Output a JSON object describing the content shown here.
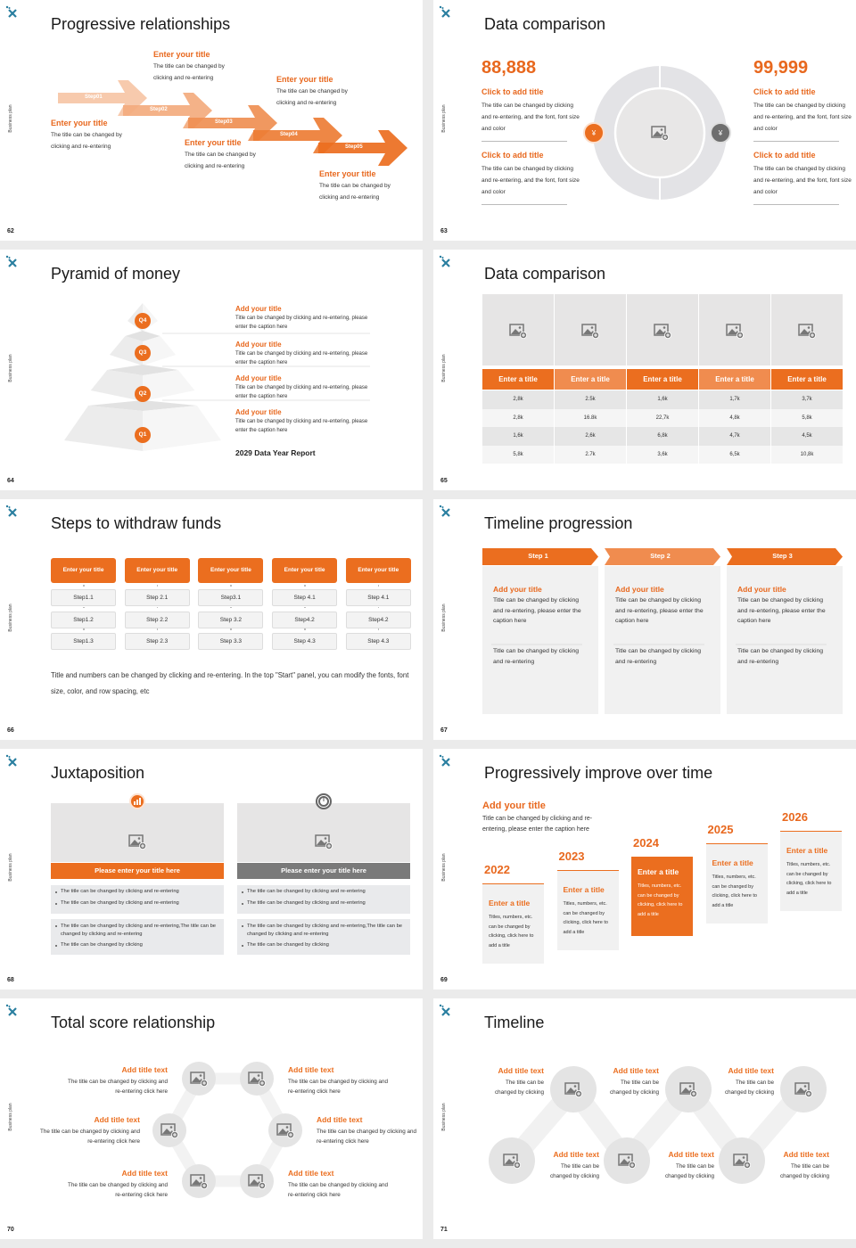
{
  "common": {
    "side_label": "Business plan"
  },
  "colors": {
    "accent": "#eb6e1f",
    "accent_light": "#f08c4f",
    "gray": "#6e6e6e",
    "logo": "#2a7fa0",
    "placeholder": "#e6e5e5"
  },
  "slides": [
    {
      "number": "62",
      "title": "Progressive relationships",
      "arrows": [
        "Step01",
        "Step02",
        "Step03",
        "Step04",
        "Step05"
      ],
      "blocks": [
        {
          "title": "Enter your title",
          "text": "The title can be changed by clicking and re-entering"
        },
        {
          "title": "Enter your title",
          "text": "The title can be changed by clicking and re-entering"
        },
        {
          "title": "Enter your title",
          "text": "The title can be changed by clicking and re-entering"
        },
        {
          "title": "Enter your title",
          "text": "The title can be changed by clicking and re-entering"
        },
        {
          "title": "Enter your title",
          "text": "The title can be changed by clicking and re-entering"
        }
      ]
    },
    {
      "number": "63",
      "title": "Data comparison",
      "left": {
        "value": "88,888",
        "items": [
          {
            "title": "Click to add title",
            "text": "The title can be changed by clicking and re-entering, and the font, font size and color"
          },
          {
            "title": "Click to add title",
            "text": "The title can be changed by clicking and re-entering, and the font, font size and color"
          }
        ]
      },
      "right": {
        "value": "99,999",
        "items": [
          {
            "title": "Click to add title",
            "text": "The title can be changed by clicking and re-entering, and the font, font size and color"
          },
          {
            "title": "Click to add title",
            "text": "The title can be changed by clicking and re-entering, and the font, font size and color"
          }
        ]
      },
      "icons": [
        "money-hand-icon",
        "money-bag-icon"
      ]
    },
    {
      "number": "64",
      "title": "Pyramid of money",
      "levels": [
        "Q4",
        "Q3",
        "Q2",
        "Q1"
      ],
      "items": [
        {
          "title": "Add your title",
          "text": "Title can be changed by clicking and re-entering, please enter the caption here"
        },
        {
          "title": "Add your title",
          "text": "Title can be changed by clicking and re-entering, please enter the caption here"
        },
        {
          "title": "Add your title",
          "text": "Title can be changed by clicking and re-entering, please enter the caption here"
        },
        {
          "title": "Add your title",
          "text": "Title can be changed by clicking and re-entering, please enter the caption here"
        }
      ],
      "footer": "2029 Data Year Report"
    },
    {
      "number": "65",
      "title": "Data comparison",
      "table": {
        "headers": [
          "Enter a title",
          "Enter a title",
          "Enter a title",
          "Enter a title",
          "Enter a title"
        ],
        "rows": [
          [
            "2,8k",
            "2.5k",
            "1,6k",
            "1,7k",
            "3,7k"
          ],
          [
            "2,8k",
            "16.8k",
            "22,7k",
            "4,8k",
            "5,8k"
          ],
          [
            "1,6k",
            "2,6k",
            "6,8k",
            "4,7k",
            "4,5k"
          ],
          [
            "5,8k",
            "2.7k",
            "3,6k",
            "6,5k",
            "10,8k"
          ]
        ]
      }
    },
    {
      "number": "66",
      "title": "Steps to withdraw funds",
      "columns": [
        {
          "title": "Enter your title",
          "steps": [
            "Step1.1",
            "Step1.2",
            "Step1.3"
          ]
        },
        {
          "title": "Enter your title",
          "steps": [
            "Step 2.1",
            "Step 2.2",
            "Step 2.3"
          ]
        },
        {
          "title": "Enter your title",
          "steps": [
            "Step3.1",
            "Step 3.2",
            "Step 3.3"
          ]
        },
        {
          "title": "Enter your title",
          "steps": [
            "Step 4.1",
            "Step4.2",
            "Step 4.3"
          ]
        },
        {
          "title": "Enter your title",
          "steps": [
            "Step 4.1",
            "Step4.2",
            "Step 4.3"
          ]
        }
      ],
      "caption": "Title and numbers can be changed by clicking and re-entering. In the top \"Start\" panel, you can modify the fonts, font size, color, and row spacing, etc"
    },
    {
      "number": "67",
      "title": "Timeline progression",
      "steps": [
        {
          "label": "Step 1",
          "title": "Add your title",
          "text": "Title can be changed by clicking and re-entering, please enter the caption here",
          "note": "Title can be changed by clicking and re-entering"
        },
        {
          "label": "Step 2",
          "title": "Add your title",
          "text": "Title can be changed by clicking and re-entering, please enter the caption here",
          "note": "Title can be changed by clicking and re-entering"
        },
        {
          "label": "Step 3",
          "title": "Add your title",
          "text": "Title can be changed by clicking and re-entering, please enter the caption here",
          "note": "Title can be changed by clicking and re-entering"
        }
      ]
    },
    {
      "number": "68",
      "title": "Juxtaposition",
      "panels": [
        {
          "title": "Please enter your title here",
          "icon": "bar-chart-icon",
          "bullets1": [
            "The title can be changed by clicking and re-entering",
            "The title can be changed by clicking and re-entering"
          ],
          "bullets2": [
            "The title can be changed by clicking and re-entering,The title can be changed by clicking and re-entering",
            "The title can be changed by clicking"
          ]
        },
        {
          "title": "Please enter your title here",
          "icon": "clock-icon",
          "bullets1": [
            "The title can be changed by clicking and re-entering",
            "The title can be changed by clicking and re-entering"
          ],
          "bullets2": [
            "The title can be changed by clicking and re-entering,The title can be changed by clicking and re-entering",
            "The title can be changed by clicking"
          ]
        }
      ]
    },
    {
      "number": "69",
      "title": "Progressively improve over time",
      "intro": {
        "title": "Add your title",
        "text": "Title can be changed by clicking and re-entering, please enter the caption here"
      },
      "years": [
        {
          "year": "2022",
          "title": "Enter a title",
          "text": "Titles, numbers, etc. can be changed by clicking, click here to add a title"
        },
        {
          "year": "2023",
          "title": "Enter a title",
          "text": "Titles, numbers, etc. can be changed by clicking, click here to add a title"
        },
        {
          "year": "2024",
          "title": "Enter a title",
          "text": "Titles, numbers, etc. can be changed by clicking, click here to add a title"
        },
        {
          "year": "2025",
          "title": "Enter a title",
          "text": "Titles, numbers, etc. can be changed by clicking, click here to add a title"
        },
        {
          "year": "2026",
          "title": "Enter a title",
          "text": "Titles, numbers, etc. can be changed by clicking, click here to add a title"
        }
      ]
    },
    {
      "number": "70",
      "title": "Total score relationship",
      "items": [
        {
          "title": "Add title text",
          "text": "The title can be changed by clicking and re-entering click here"
        },
        {
          "title": "Add title text",
          "text": "The title can be changed by clicking and re-entering click here"
        },
        {
          "title": "Add title text",
          "text": "The title can be changed by clicking and re-entering click here"
        },
        {
          "title": "Add title text",
          "text": "The title can be changed by clicking and re-entering click here"
        },
        {
          "title": "Add title text",
          "text": "The title can be changed by clicking and re-entering click here"
        },
        {
          "title": "Add title text",
          "text": "The title can be changed by clicking and re-entering click here"
        }
      ]
    },
    {
      "number": "71",
      "title": "Timeline",
      "items": [
        {
          "title": "Add title text",
          "text": "The title can be changed by clicking"
        },
        {
          "title": "Add title text",
          "text": "The title can be changed by clicking"
        },
        {
          "title": "Add title text",
          "text": "The title can be changed by clicking"
        },
        {
          "title": "Add title text",
          "text": "The title can be changed by clicking"
        },
        {
          "title": "Add title text",
          "text": "The title can be changed by clicking"
        },
        {
          "title": "Add title text",
          "text": "The title can be changed by clicking"
        }
      ]
    }
  ]
}
